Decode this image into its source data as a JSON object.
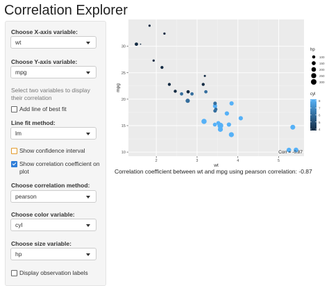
{
  "header": {
    "title": "Correlation Explorer"
  },
  "sidebar": {
    "x_label": "Choose X-axis variable:",
    "x_value": "wt",
    "y_label": "Choose Y-axis variable:",
    "y_value": "mpg",
    "help": "Select two variables to display their correlation",
    "best_fit": {
      "label": "Add line of best fit",
      "checked": false
    },
    "method_label": "Line fit method:",
    "method_value": "lm",
    "ci": {
      "label": "Show confidence interval",
      "checked": false
    },
    "show_corr": {
      "label": "Show correlation coefficient on plot",
      "checked": true
    },
    "corr_method_label": "Choose correlation method:",
    "corr_method_value": "pearson",
    "color_label": "Choose color variable:",
    "color_value": "cyl",
    "size_label": "Choose size variable:",
    "size_value": "hp",
    "obs_labels": {
      "label": "Display observation labels",
      "checked": false
    }
  },
  "chart_data": {
    "type": "scatter",
    "x_label": "wt",
    "y_label": "mpg",
    "x": [
      2.62,
      2.875,
      2.32,
      3.215,
      3.44,
      3.46,
      3.57,
      3.19,
      3.15,
      3.44,
      3.44,
      4.07,
      3.73,
      3.78,
      5.25,
      5.424,
      5.345,
      2.2,
      1.615,
      1.835,
      2.465,
      3.52,
      3.435,
      3.84,
      3.845,
      1.935,
      2.14,
      1.513,
      3.17,
      2.77,
      3.57,
      2.78
    ],
    "y": [
      21.0,
      21.0,
      22.8,
      21.4,
      18.7,
      18.1,
      14.3,
      24.4,
      22.8,
      19.2,
      17.8,
      16.4,
      17.3,
      15.2,
      10.4,
      10.4,
      14.7,
      32.4,
      30.4,
      33.9,
      21.5,
      15.5,
      15.2,
      13.3,
      19.2,
      27.3,
      26.0,
      30.4,
      15.8,
      19.7,
      15.0,
      21.4
    ],
    "color_values": [
      6,
      6,
      4,
      6,
      8,
      6,
      8,
      4,
      4,
      6,
      6,
      8,
      8,
      8,
      8,
      8,
      8,
      4,
      4,
      4,
      4,
      8,
      8,
      8,
      8,
      4,
      4,
      4,
      8,
      6,
      8,
      4
    ],
    "size_values": [
      110,
      110,
      93,
      110,
      175,
      105,
      245,
      62,
      95,
      123,
      123,
      180,
      180,
      180,
      205,
      215,
      230,
      66,
      52,
      65,
      97,
      150,
      150,
      245,
      175,
      66,
      91,
      113,
      264,
      175,
      335,
      109
    ],
    "xlim": [
      1.317,
      5.62
    ],
    "ylim": [
      9.225,
      35.075
    ],
    "xticks": [
      2,
      3,
      4,
      5
    ],
    "yticks": [
      10,
      15,
      20,
      25,
      30
    ],
    "grid": true,
    "annotation": "Corr = -0.87",
    "size_legend": {
      "title": "hp",
      "ticks": [
        100,
        150,
        200,
        250,
        300
      ]
    },
    "color_legend": {
      "title": "cyl",
      "ticks": [
        4,
        5,
        6,
        7,
        8
      ],
      "colors": [
        "#132B43",
        "#56B1F7"
      ]
    }
  },
  "caption": "Correlation coefficient between wt and mpg using pearson correlation: -0.87"
}
